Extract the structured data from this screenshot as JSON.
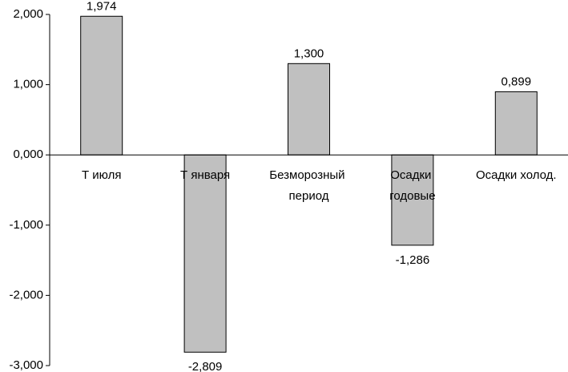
{
  "chart_data": {
    "type": "bar",
    "categories": [
      "Т июля",
      "Т января",
      "Безморозный период",
      "Осадки годовые",
      "Осадки холод."
    ],
    "values": [
      1.974,
      -2.809,
      1.3,
      -1.286,
      0.899
    ],
    "value_labels": [
      "1,974",
      "-2,809",
      "1,300",
      "-1,286",
      "0,899"
    ],
    "color": "#c0c0c0",
    "ylim": [
      -3,
      2
    ],
    "yticks": [
      {
        "value": -3,
        "label": "-3,000"
      },
      {
        "value": -2,
        "label": "-2,000"
      },
      {
        "value": -1,
        "label": "-1,000"
      },
      {
        "value": 0,
        "label": "0,000"
      },
      {
        "value": 1,
        "label": "1,000"
      },
      {
        "value": 2,
        "label": "2,000"
      }
    ],
    "grid": false
  }
}
